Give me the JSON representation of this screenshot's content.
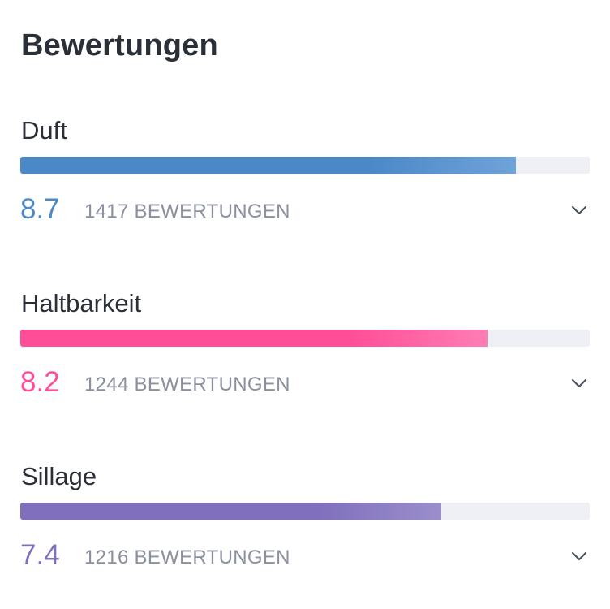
{
  "title": "Bewertungen",
  "ratings": [
    {
      "label": "Duft",
      "score": "8.7",
      "score_value": 8.7,
      "max": 10,
      "count_text": "1417 BEWERTUNGEN",
      "color": "#4a88c8",
      "color_light": "#6fa3d8",
      "icon": "chevron-down-icon"
    },
    {
      "label": "Haltbarkeit",
      "score": "8.2",
      "score_value": 8.2,
      "max": 10,
      "count_text": "1244 BEWERTUNGEN",
      "color": "#ff4d97",
      "color_light": "#ff7db4",
      "icon": "chevron-down-icon"
    },
    {
      "label": "Sillage",
      "score": "7.4",
      "score_value": 7.4,
      "max": 10,
      "count_text": "1216 BEWERTUNGEN",
      "color": "#7f6fbd",
      "color_light": "#9b8ecb",
      "icon": "chevron-down-icon"
    }
  ]
}
